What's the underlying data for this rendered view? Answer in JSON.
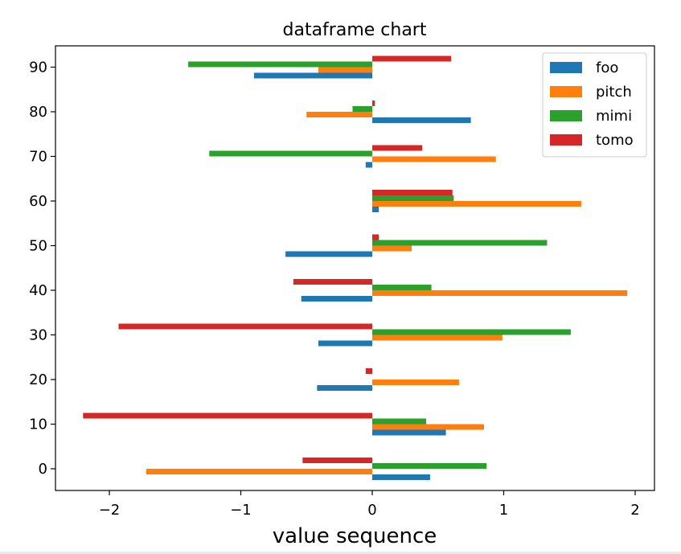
{
  "chart_data": {
    "type": "bar",
    "orientation": "horizontal",
    "title": "dataframe chart",
    "xlabel": "value sequence",
    "ylabel": "",
    "categories": [
      "0",
      "10",
      "20",
      "30",
      "40",
      "50",
      "60",
      "70",
      "80",
      "90"
    ],
    "xticks": [
      "−2",
      "−1",
      "0",
      "1",
      "2"
    ],
    "xtick_values": [
      -2,
      -1,
      0,
      1,
      2
    ],
    "xlim": [
      -2.4,
      2.15
    ],
    "grid": false,
    "legend_position": "top-right",
    "series": [
      {
        "name": "foo",
        "color": "#1f77b4",
        "values": [
          0.44,
          0.56,
          -0.42,
          -0.41,
          -0.54,
          -0.66,
          0.05,
          -0.05,
          0.75,
          -0.9
        ]
      },
      {
        "name": "pitch",
        "color": "#ff7f0e",
        "values": [
          -1.72,
          0.85,
          0.66,
          0.99,
          1.94,
          0.3,
          1.59,
          0.94,
          -0.5,
          -0.41
        ]
      },
      {
        "name": "mimi",
        "color": "#2ca02c",
        "values": [
          0.87,
          0.41,
          0.0,
          1.51,
          0.45,
          1.33,
          0.62,
          -1.24,
          -0.15,
          -1.4
        ]
      },
      {
        "name": "tomo",
        "color": "#d62728",
        "values": [
          -0.53,
          -2.2,
          -0.05,
          -1.93,
          -0.6,
          0.05,
          0.61,
          0.38,
          0.02,
          0.6
        ]
      }
    ]
  }
}
